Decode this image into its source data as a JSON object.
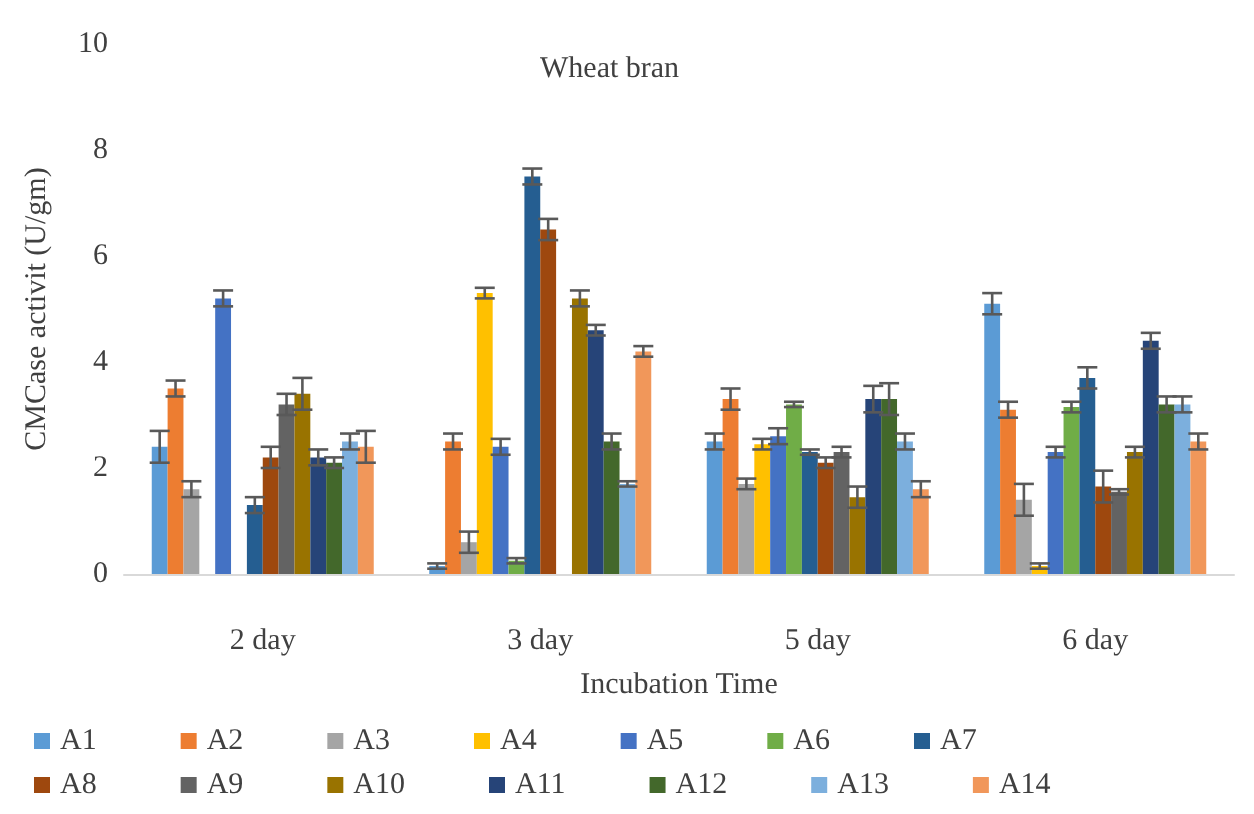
{
  "chart_data": {
    "type": "bar",
    "title": "Wheat bran",
    "xlabel": "Incubation Time",
    "ylabel": "CMCase activit (U/gm)",
    "categories": [
      "2 day",
      "3 day",
      "5 day",
      "6 day"
    ],
    "ylim": [
      0,
      10
    ],
    "yticks": [
      0,
      2,
      4,
      6,
      8,
      10
    ],
    "legend": "bottom",
    "series": [
      {
        "name": "A1",
        "color": "#5b9bd5",
        "values": [
          2.4,
          0.15,
          2.5,
          5.1
        ],
        "errors": [
          0.3,
          0.05,
          0.15,
          0.2
        ]
      },
      {
        "name": "A2",
        "color": "#ed7d31",
        "values": [
          3.5,
          2.5,
          3.3,
          3.1
        ],
        "errors": [
          0.15,
          0.15,
          0.2,
          0.15
        ]
      },
      {
        "name": "A3",
        "color": "#a5a5a5",
        "values": [
          1.6,
          0.6,
          1.7,
          1.4
        ],
        "errors": [
          0.15,
          0.2,
          0.1,
          0.3
        ]
      },
      {
        "name": "A4",
        "color": "#ffc000",
        "values": [
          0,
          5.3,
          2.45,
          0.15
        ],
        "errors": [
          0,
          0.1,
          0.1,
          0.05
        ]
      },
      {
        "name": "A5",
        "color": "#4472c4",
        "values": [
          5.2,
          2.4,
          2.6,
          2.3
        ],
        "errors": [
          0.15,
          0.15,
          0.15,
          0.1
        ]
      },
      {
        "name": "A6",
        "color": "#70ad47",
        "values": [
          0,
          0.25,
          3.2,
          3.15
        ],
        "errors": [
          0,
          0.05,
          0.05,
          0.1
        ]
      },
      {
        "name": "A7",
        "color": "#255e91",
        "values": [
          1.3,
          7.5,
          2.3,
          3.7
        ],
        "errors": [
          0.15,
          0.15,
          0.05,
          0.2
        ]
      },
      {
        "name": "A8",
        "color": "#9e480e",
        "values": [
          2.2,
          6.5,
          2.1,
          1.65
        ],
        "errors": [
          0.2,
          0.2,
          0.1,
          0.3
        ]
      },
      {
        "name": "A9",
        "color": "#636363",
        "values": [
          3.2,
          0,
          2.3,
          1.55
        ],
        "errors": [
          0.2,
          0,
          0.1,
          0.05
        ]
      },
      {
        "name": "A10",
        "color": "#997300",
        "values": [
          3.4,
          5.2,
          1.45,
          2.3
        ],
        "errors": [
          0.3,
          0.15,
          0.2,
          0.1
        ]
      },
      {
        "name": "A11",
        "color": "#264478",
        "values": [
          2.2,
          4.6,
          3.3,
          4.4
        ],
        "errors": [
          0.15,
          0.1,
          0.25,
          0.15
        ]
      },
      {
        "name": "A12",
        "color": "#43682b",
        "values": [
          2.1,
          2.5,
          3.3,
          3.2
        ],
        "errors": [
          0.1,
          0.15,
          0.3,
          0.15
        ]
      },
      {
        "name": "A13",
        "color": "#7cafdd",
        "values": [
          2.5,
          1.7,
          2.5,
          3.2
        ],
        "errors": [
          0.15,
          0.05,
          0.15,
          0.15
        ]
      },
      {
        "name": "A14",
        "color": "#f1975a",
        "values": [
          2.4,
          4.2,
          1.6,
          2.5
        ],
        "errors": [
          0.3,
          0.1,
          0.15,
          0.15
        ]
      }
    ]
  }
}
